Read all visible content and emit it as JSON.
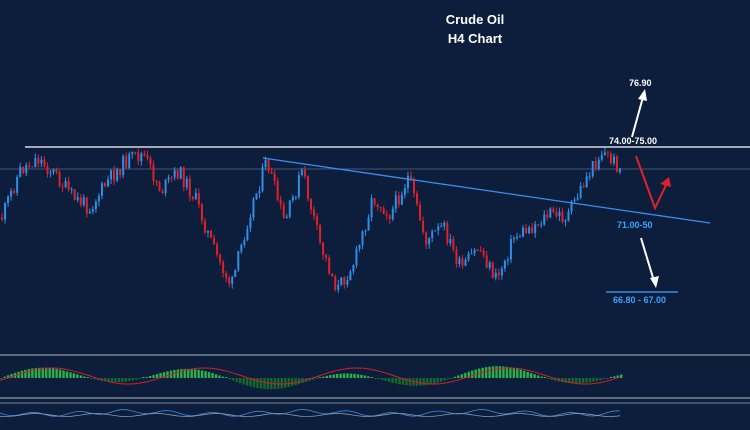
{
  "header": {
    "title_line1": "Crude Oil",
    "title_line2": "H4 Chart"
  },
  "labels": {
    "target_up": "76.90",
    "resistance": "74.00-75.00",
    "support": "71.00-50",
    "target_down": "66.80 - 67.00"
  },
  "colors": {
    "background": "#0c1e3b",
    "bull_candle": "#2f8fe6",
    "bear_candle": "#e0202a",
    "trendline": "#3c8cf0",
    "resistance_line": "#ffffff",
    "support_label": "#3ea2ff",
    "histogram_up": "#27b34a",
    "histogram_down": "#16692c",
    "signal_line": "#d41f2a",
    "panel_border": "#7a8595"
  },
  "chart_data": {
    "type": "candlestick",
    "title": "Crude Oil H4 Chart",
    "price_path": [
      72.2,
      73.6,
      74.0,
      73.5,
      72.8,
      72.5,
      73.3,
      73.9,
      74.1,
      73.0,
      73.6,
      72.7,
      71.2,
      70.1,
      72.3,
      73.9,
      72.0,
      73.6,
      71.4,
      70.0,
      70.9,
      72.8,
      72.3,
      73.4,
      71.5,
      71.9,
      70.6,
      71.3,
      70.3,
      71.6,
      71.9,
      72.3,
      72.2,
      73.3,
      74.2,
      73.7
    ],
    "levels": [
      {
        "label": "74.00-75.00",
        "type": "resistance"
      },
      {
        "label": "71.00-50",
        "type": "support"
      },
      {
        "label": "76.90",
        "type": "upside target"
      },
      {
        "label": "66.80 - 67.00",
        "type": "downside target"
      }
    ],
    "scenarios": [
      {
        "direction": "down then up",
        "color": "red"
      },
      {
        "direction": "up",
        "color": "white",
        "target": "76.90"
      },
      {
        "direction": "down",
        "color": "white",
        "target": "66.80 - 67.00"
      }
    ]
  }
}
